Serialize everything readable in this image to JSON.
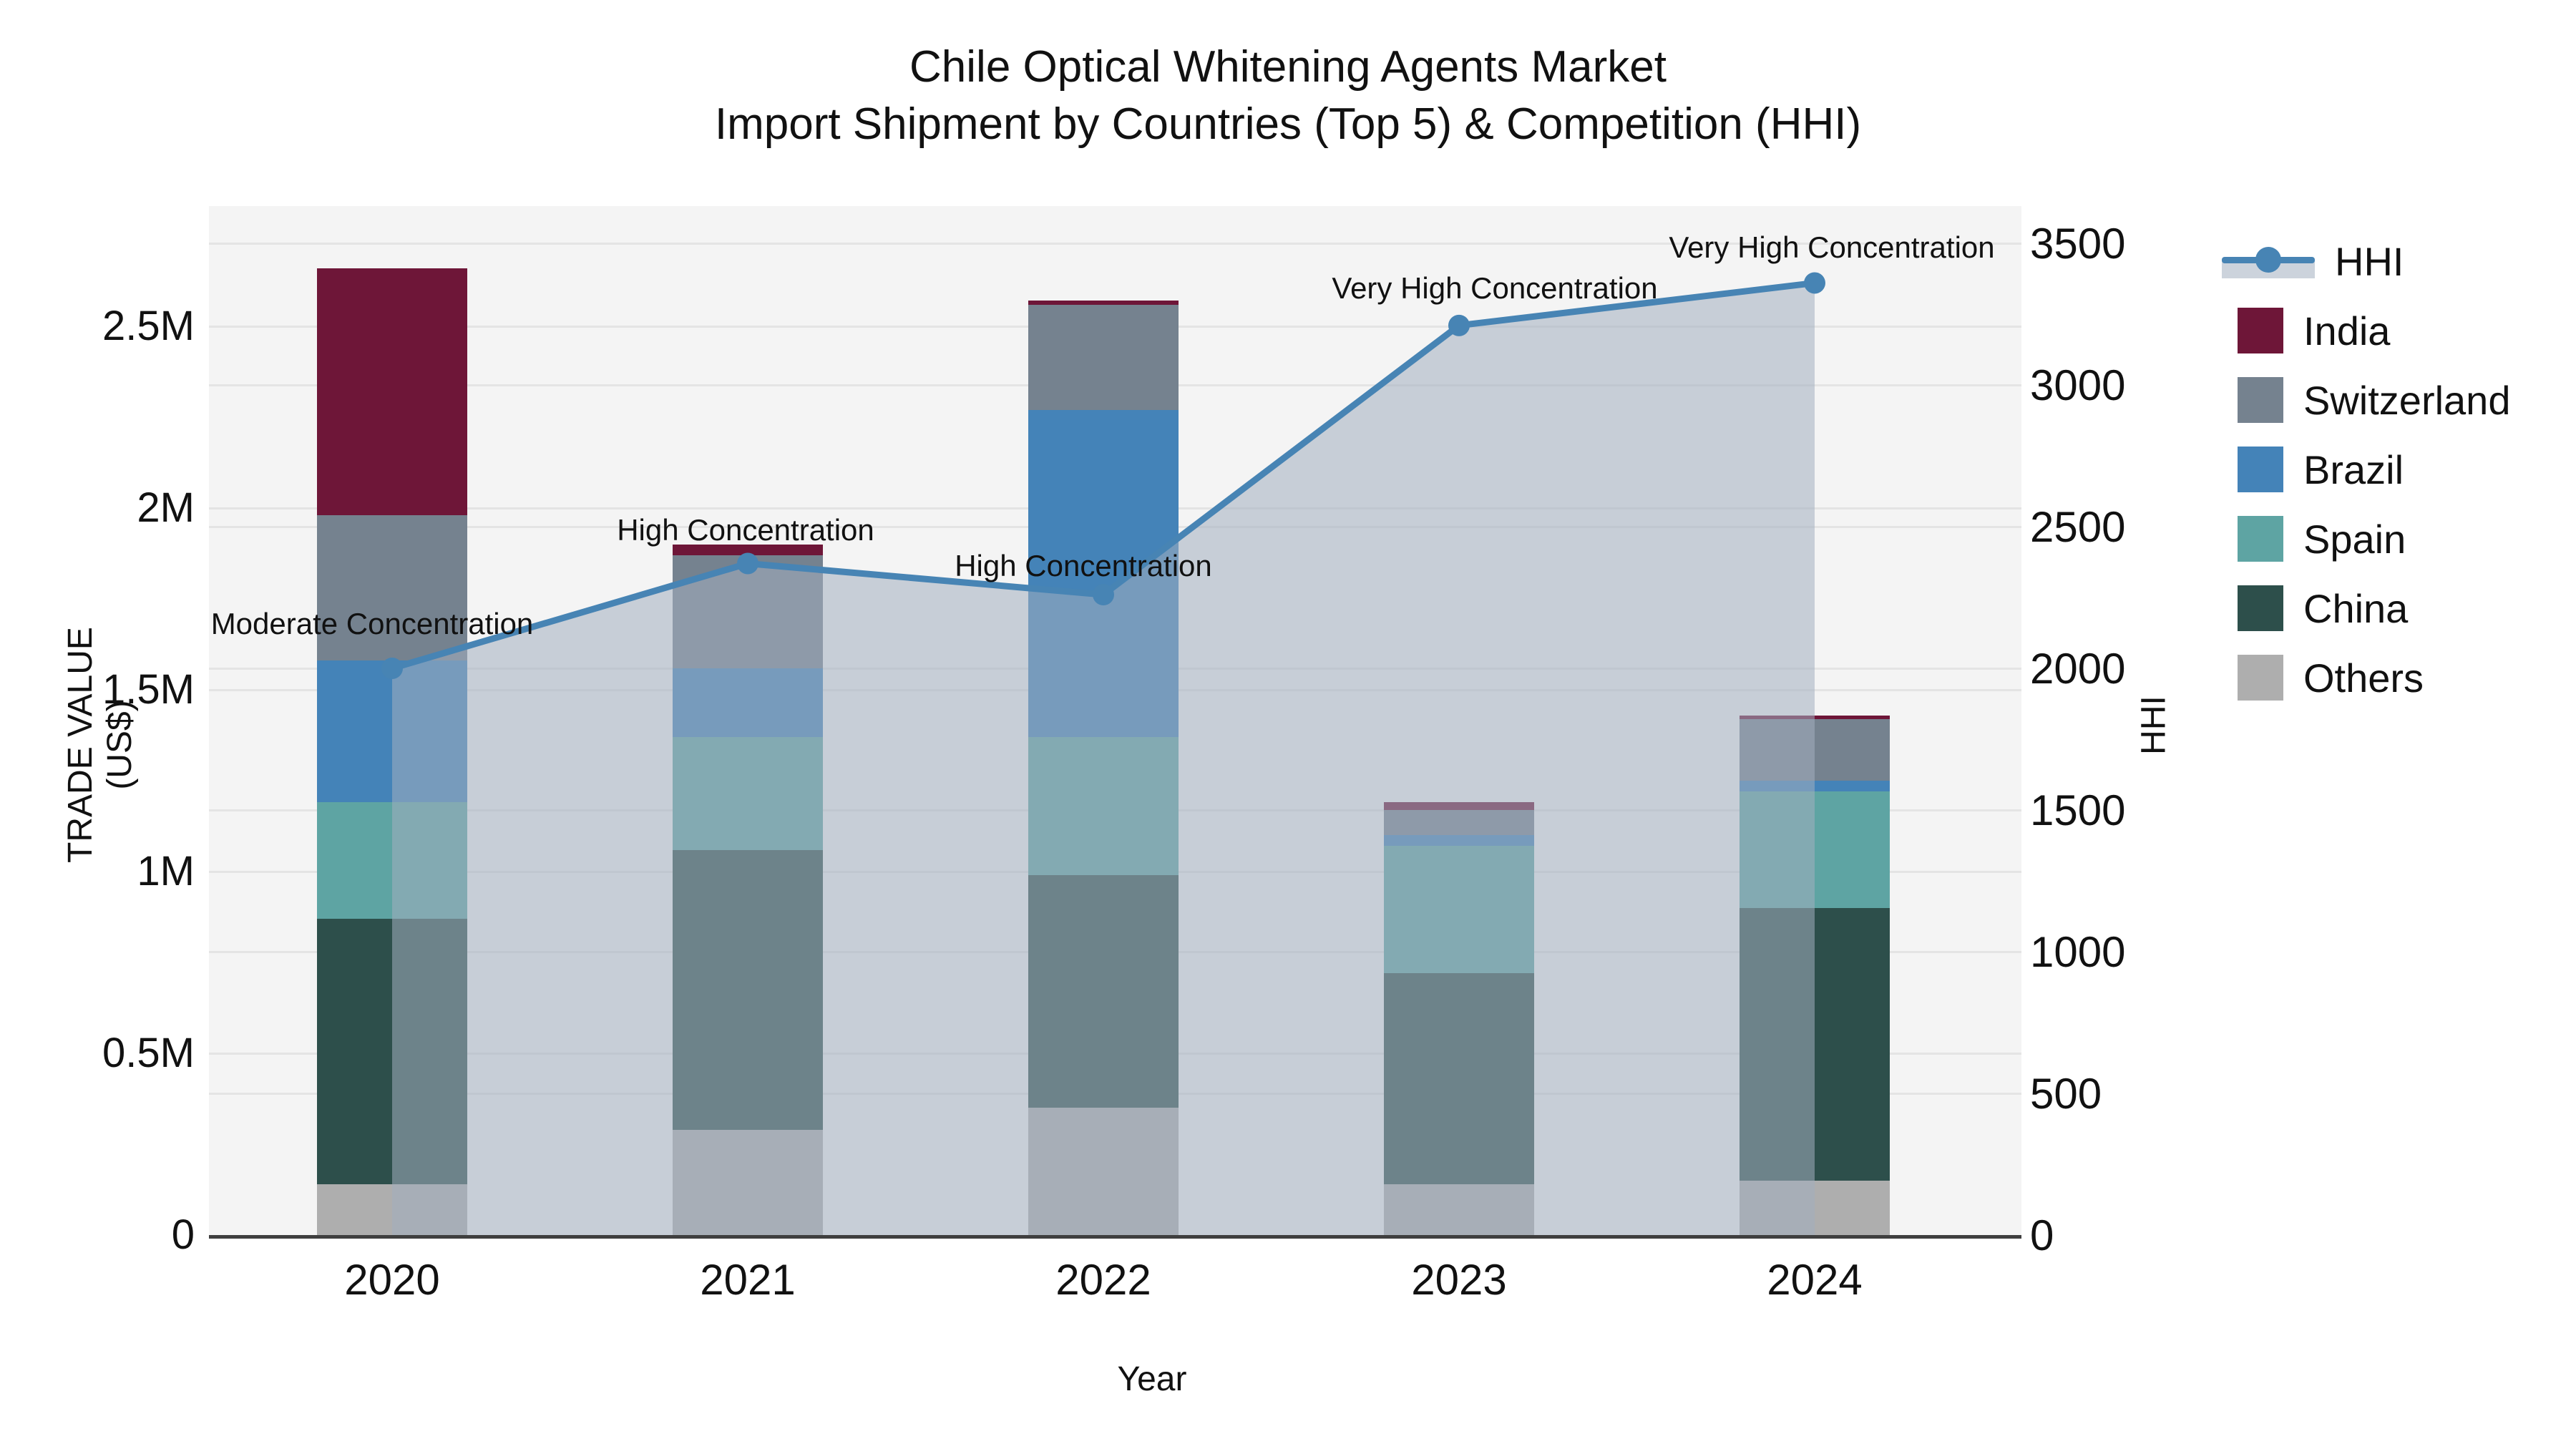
{
  "title": {
    "line1": "Chile Optical Whitening Agents Market",
    "line2": "Import Shipment by Countries (Top 5) & Competition (HHI)"
  },
  "axes": {
    "x": {
      "title": "Year",
      "categories": [
        "2020",
        "2021",
        "2022",
        "2023",
        "2024"
      ]
    },
    "y_left": {
      "title": "TRADE VALUE (US$)",
      "tick_labels": [
        "0",
        "0.5M",
        "1M",
        "1.5M",
        "2M",
        "2.5M"
      ],
      "tick_values_millions": [
        0,
        0.5,
        1,
        1.5,
        2,
        2.5
      ]
    },
    "y_right": {
      "title": "HHI",
      "tick_labels": [
        "0",
        "500",
        "1000",
        "1500",
        "2000",
        "2500",
        "3000",
        "3500"
      ],
      "tick_values": [
        0,
        500,
        1000,
        1500,
        2000,
        2500,
        3000,
        3500
      ],
      "range": [
        0,
        3500
      ]
    }
  },
  "chart_data": {
    "type": "bar",
    "subtype": "stacked-bar-with-line",
    "categories": [
      "2020",
      "2021",
      "2022",
      "2023",
      "2024"
    ],
    "bar_unit": "millions US$",
    "series": [
      {
        "name": "Others",
        "color": "#aeaeae",
        "values": [
          0.14,
          0.29,
          0.35,
          0.14,
          0.15
        ]
      },
      {
        "name": "China",
        "color": "#2d4f4b",
        "values": [
          0.73,
          0.77,
          0.64,
          0.58,
          0.75
        ]
      },
      {
        "name": "Spain",
        "color": "#5ea4a3",
        "values": [
          0.32,
          0.31,
          0.38,
          0.35,
          0.32
        ]
      },
      {
        "name": "Brazil",
        "color": "#4483b8",
        "values": [
          0.39,
          0.19,
          0.9,
          0.03,
          0.03
        ]
      },
      {
        "name": "Switzerland",
        "color": "#75828f",
        "values": [
          0.4,
          0.31,
          0.29,
          0.07,
          0.17
        ]
      },
      {
        "name": "India",
        "color": "#6e1638",
        "values": [
          0.68,
          0.03,
          0.01,
          0.02,
          0.01
        ]
      }
    ],
    "line_series": {
      "name": "HHI",
      "color": "#4784b4",
      "area_fill": "rgba(163,174,191,0.55)",
      "values": [
        2000,
        2370,
        2260,
        3210,
        3360
      ]
    },
    "annotations": [
      {
        "year": "2020",
        "text": "Moderate Concentration"
      },
      {
        "year": "2021",
        "text": "High Concentration"
      },
      {
        "year": "2022",
        "text": "High Concentration"
      },
      {
        "year": "2023",
        "text": "Very High Concentration"
      },
      {
        "year": "2024",
        "text": "Very High Concentration"
      }
    ],
    "legend_order": [
      "HHI",
      "India",
      "Switzerland",
      "Brazil",
      "Spain",
      "China",
      "Others"
    ],
    "grid": true,
    "plot_background": "#f4f4f4",
    "legend_position": "right"
  }
}
